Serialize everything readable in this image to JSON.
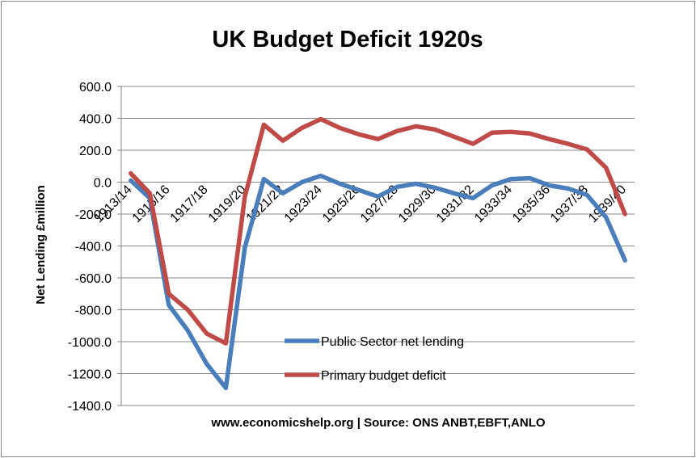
{
  "chart_data": {
    "type": "line",
    "title": "UK Budget Deficit 1920s",
    "xlabel": "",
    "ylabel": "Net Lending £million",
    "source": "www.economicshelp.org | Source: ONS ANBT,EBFT,ANLO",
    "ylim": [
      -1400,
      600
    ],
    "ytick_step": 200,
    "grid": true,
    "legend_position": "bottom-right",
    "categories": [
      "1913/14",
      "1914/15",
      "1915/16",
      "1916/17",
      "1917/18",
      "1918/19",
      "1919/20",
      "1920/21",
      "1921/22",
      "1922/23",
      "1923/24",
      "1924/25",
      "1925/26",
      "1926/27",
      "1927/28",
      "1928/29",
      "1929/30",
      "1930/31",
      "1931/32",
      "1932/33",
      "1933/34",
      "1934/35",
      "1935/36",
      "1936/37",
      "1937/38",
      "1938/39",
      "1939/40"
    ],
    "xtick_labels": [
      "1913/14",
      "1915/16",
      "1917/18",
      "1919/20",
      "1921/22",
      "1923/24",
      "1925/26",
      "1927/28",
      "1929/30",
      "1931/32",
      "1933/34",
      "1935/36",
      "1937/38",
      "1939/40"
    ],
    "ytick_labels": [
      "600.0",
      "400.0",
      "200.0",
      "0.0",
      "-200.0",
      "-400.0",
      "-600.0",
      "-800.0",
      "-1000.0",
      "-1200.0",
      "-1400.0"
    ],
    "series": [
      {
        "name": "Public Sector net lending",
        "color": "#4a7ebb",
        "values": [
          10,
          -100,
          -770,
          -930,
          -1140,
          -1290,
          -410,
          20,
          -70,
          0,
          40,
          -10,
          -50,
          -90,
          -30,
          -10,
          -35,
          -70,
          -100,
          -20,
          20,
          25,
          -20,
          -40,
          -80,
          -220,
          -490
        ]
      },
      {
        "name": "Primary budget deficit",
        "color": "#be4b48",
        "values": [
          55,
          -70,
          -700,
          -800,
          -950,
          -1010,
          -90,
          360,
          260,
          340,
          395,
          340,
          300,
          270,
          320,
          350,
          330,
          285,
          240,
          310,
          315,
          305,
          270,
          240,
          205,
          90,
          -200
        ]
      }
    ]
  }
}
